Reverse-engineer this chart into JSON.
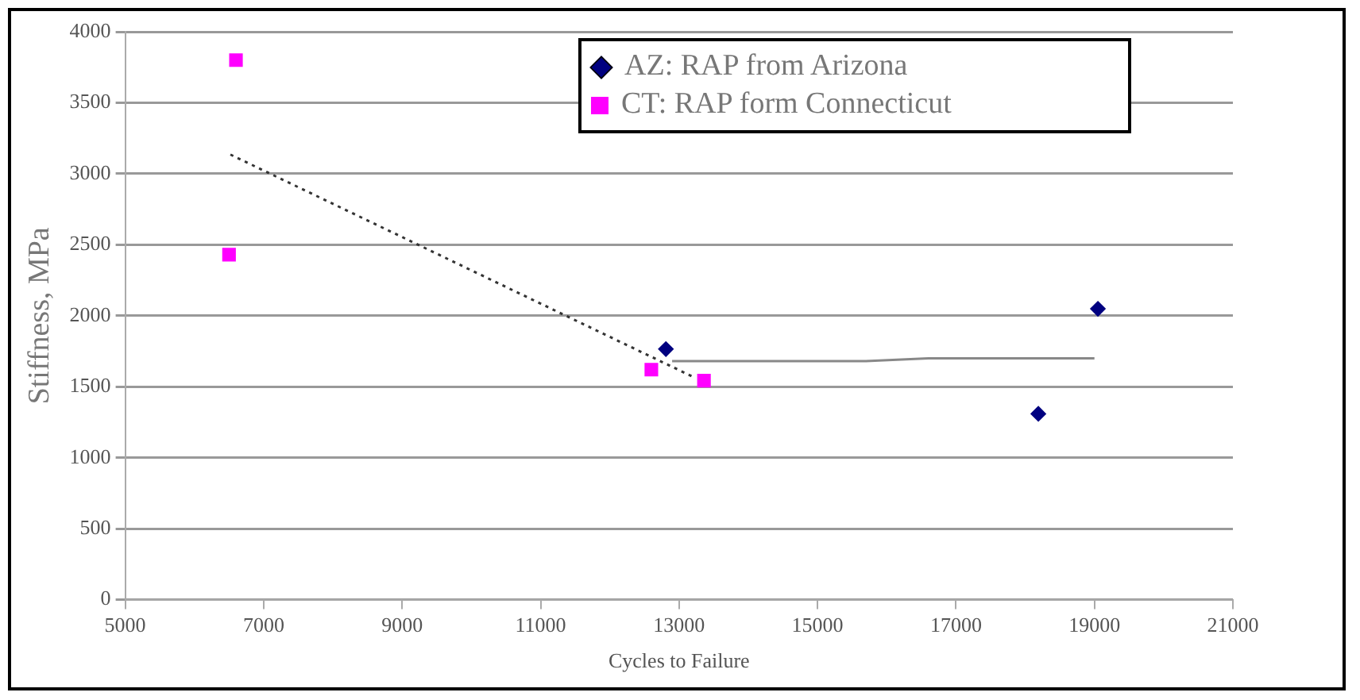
{
  "chart_data": {
    "type": "scatter",
    "xlabel": "Cycles to Failure",
    "ylabel": "Stiffness, MPa",
    "xlim": [
      5000,
      21000
    ],
    "xticks": [
      5000,
      7000,
      9000,
      11000,
      13000,
      15000,
      17000,
      19000,
      21000
    ],
    "ylim": [
      0,
      4000
    ],
    "yticks": [
      0,
      500,
      1000,
      1500,
      2000,
      2500,
      3000,
      3500,
      4000
    ],
    "grid": "y",
    "legend": "top right",
    "series": [
      {
        "name": "AZ: RAP from Arizona",
        "color": "#000080",
        "marker": "diamond",
        "x": [
          12810,
          18190,
          19050
        ],
        "values": [
          1765,
          1309,
          2049
        ]
      },
      {
        "name": "CT: RAP form Connecticut",
        "color": "#ff00ff",
        "marker": "square",
        "x": [
          6600,
          6500,
          12600,
          13360
        ],
        "values": [
          3800,
          2430,
          1620,
          1543
        ]
      },
      {
        "type": "line",
        "color": "#333333",
        "line_style": "dotted",
        "marker": "none",
        "x": [
          6520,
          13200
        ],
        "values": [
          3135,
          1570
        ]
      },
      {
        "type": "line",
        "color": "#888888",
        "line_style": "solid",
        "marker": "none",
        "x": [
          12900,
          15700,
          16600,
          19000
        ],
        "values": [
          1680,
          1680,
          1700,
          1700
        ]
      }
    ]
  }
}
